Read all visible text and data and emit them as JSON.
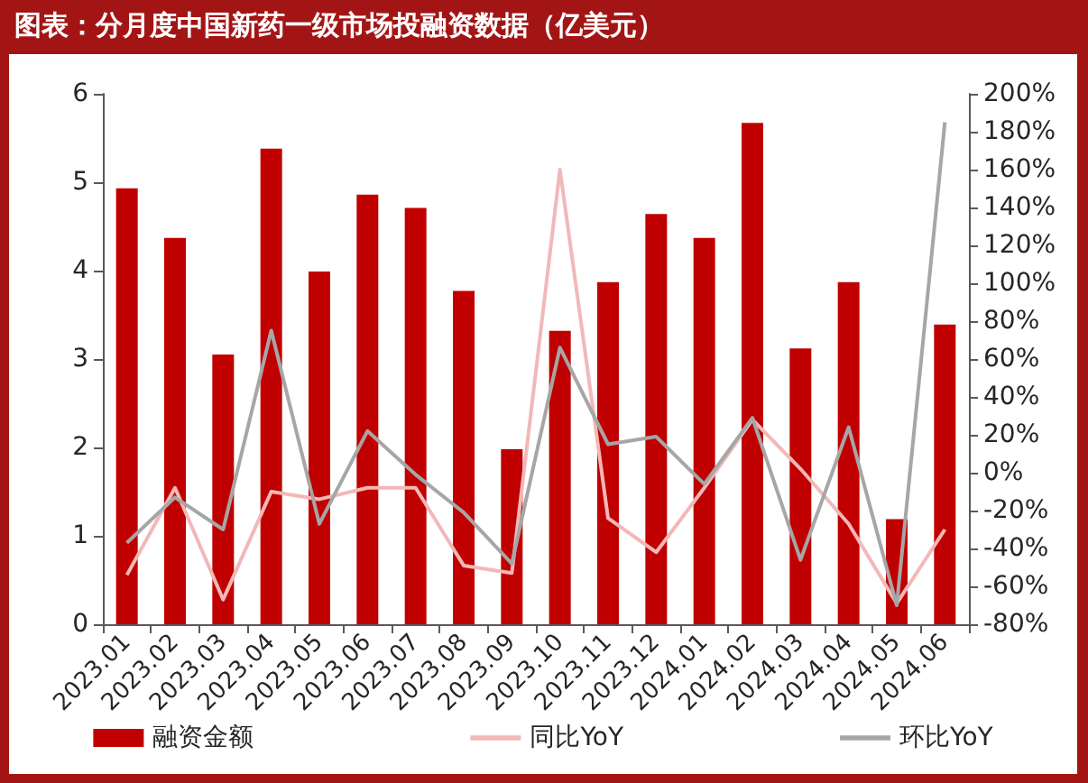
{
  "chart_data": {
    "type": "bar",
    "title": "图表：分月度中国新药一级市场投融资数据（亿美元）",
    "categories": [
      "2023.01",
      "2023.02",
      "2023.03",
      "2023.04",
      "2023.05",
      "2023.06",
      "2023.07",
      "2023.08",
      "2023.09",
      "2023.10",
      "2023.11",
      "2023.12",
      "2024.01",
      "2024.02",
      "2024.03",
      "2024.04",
      "2024.05",
      "2024.06"
    ],
    "series": [
      {
        "name": "融资金额",
        "color": "#c00000",
        "values": [
          4.93,
          4.37,
          3.05,
          5.38,
          3.99,
          4.86,
          4.71,
          3.77,
          1.98,
          3.32,
          3.87,
          4.64,
          4.37,
          5.67,
          3.12,
          3.87,
          1.19,
          3.39
        ]
      },
      {
        "name": "同比YoY",
        "type": "line",
        "axis": "y2",
        "color": "#f2b8b8",
        "values": [
          -54,
          -8,
          -67,
          -10,
          -14,
          -8,
          -8,
          -49,
          -53,
          160,
          -24,
          -42,
          -8,
          28,
          2,
          -27,
          -69,
          -30
        ]
      },
      {
        "name": "环比YoY",
        "type": "line",
        "axis": "y2",
        "color": "#a6a6a6",
        "values": [
          -37,
          -13,
          -30,
          75,
          -27,
          22,
          -1,
          -21,
          -48,
          66,
          15,
          19,
          -6,
          29,
          -46,
          24,
          -70,
          185
        ]
      }
    ],
    "ylim": [
      0,
      6
    ],
    "yticks": [
      0,
      1,
      2,
      3,
      4,
      5,
      6
    ],
    "y2lim": [
      -80,
      200
    ],
    "y2ticks": [
      {
        "value": -80,
        "label": "-80%"
      },
      {
        "value": -60,
        "label": "-60%"
      },
      {
        "value": -40,
        "label": "-40%"
      },
      {
        "value": -20,
        "label": "-20%"
      },
      {
        "value": 0,
        "label": "0%"
      },
      {
        "value": 20,
        "label": "20%"
      },
      {
        "value": 40,
        "label": "40%"
      },
      {
        "value": 60,
        "label": "60%"
      },
      {
        "value": 80,
        "label": "80%"
      },
      {
        "value": 100,
        "label": "100%"
      },
      {
        "value": 120,
        "label": "120%"
      },
      {
        "value": 140,
        "label": "140%"
      },
      {
        "value": 160,
        "label": "160%"
      },
      {
        "value": 180,
        "label": "180%"
      },
      {
        "value": 200,
        "label": "200%"
      }
    ],
    "legend": "bottom",
    "grid": false,
    "marker": "none",
    "line_style": "solid"
  }
}
